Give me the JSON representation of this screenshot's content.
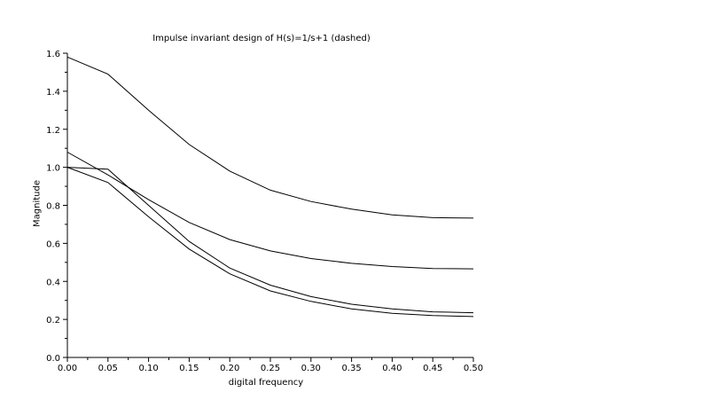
{
  "chart_data": {
    "type": "line",
    "title": "Impulse invariant design of H(s)=1/s+1 (dashed)",
    "xlabel": "digital frequency",
    "ylabel": "Magnitude",
    "xlim": [
      0,
      0.5
    ],
    "ylim": [
      0,
      1.6
    ],
    "grid": false,
    "legend": "none",
    "x_ticks": [
      "0.00",
      "0.05",
      "0.10",
      "0.15",
      "0.20",
      "0.25",
      "0.30",
      "0.35",
      "0.40",
      "0.45",
      "0.50"
    ],
    "y_ticks": [
      "0.0",
      "0.2",
      "0.4",
      "0.6",
      "0.8",
      "1.0",
      "1.2",
      "1.4",
      "1.6"
    ],
    "x": [
      0.0,
      0.05,
      0.1,
      0.15,
      0.2,
      0.25,
      0.3,
      0.35,
      0.4,
      0.45,
      0.5
    ],
    "series": [
      {
        "values": [
          1.58,
          1.49,
          1.3,
          1.12,
          0.98,
          0.88,
          0.82,
          0.78,
          0.75,
          0.735,
          0.733
        ]
      },
      {
        "values": [
          1.08,
          0.96,
          0.83,
          0.71,
          0.62,
          0.56,
          0.52,
          0.495,
          0.478,
          0.468,
          0.466
        ]
      },
      {
        "values": [
          1.0,
          0.99,
          0.8,
          0.61,
          0.47,
          0.38,
          0.32,
          0.28,
          0.255,
          0.24,
          0.235
        ]
      },
      {
        "values": [
          1.0,
          0.92,
          0.74,
          0.57,
          0.44,
          0.35,
          0.295,
          0.255,
          0.232,
          0.22,
          0.215
        ]
      }
    ],
    "colors": {
      "line": "#000000",
      "axis": "#000000",
      "background": "#ffffff"
    }
  }
}
